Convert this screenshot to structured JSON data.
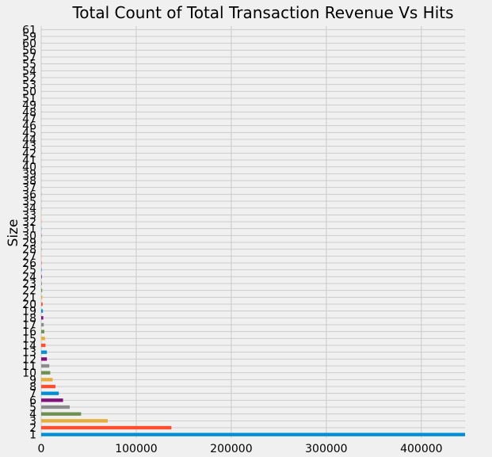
{
  "chart_data": {
    "type": "bar",
    "orientation": "horizontal",
    "title": "Total Count of Total Transaction Revenue Vs Hits",
    "xlabel": "",
    "ylabel": "Size",
    "xlim": [
      0,
      446000
    ],
    "xticks": [
      0,
      100000,
      200000,
      300000,
      400000
    ],
    "grid": true,
    "palette": [
      "#008fd5",
      "#fc4f30",
      "#e5ae38",
      "#6d904f",
      "#8b8b8b",
      "#810f7c"
    ],
    "categories": [
      "1",
      "2",
      "3",
      "4",
      "5",
      "6",
      "7",
      "8",
      "9",
      "10",
      "11",
      "12",
      "13",
      "14",
      "15",
      "16",
      "17",
      "18",
      "19",
      "20",
      "21",
      "22",
      "23",
      "24",
      "25",
      "26",
      "27",
      "28",
      "29",
      "30",
      "31",
      "32",
      "33",
      "34",
      "35",
      "36",
      "37",
      "38",
      "39",
      "40",
      "41",
      "42",
      "43",
      "44",
      "45",
      "46",
      "47",
      "48",
      "49",
      "51",
      "50",
      "53",
      "52",
      "54",
      "55",
      "57",
      "56",
      "60",
      "59",
      "61"
    ],
    "values": [
      446000,
      137000,
      70000,
      42000,
      30000,
      23000,
      18500,
      15000,
      12000,
      9500,
      8500,
      6000,
      6000,
      4500,
      4000,
      3300,
      2700,
      2200,
      1800,
      1500,
      1200,
      1000,
      700,
      600,
      500,
      450,
      400,
      350,
      300,
      260,
      230,
      200,
      180,
      160,
      140,
      120,
      110,
      100,
      90,
      80,
      70,
      60,
      55,
      50,
      45,
      40,
      35,
      30,
      28,
      25,
      22,
      20,
      18,
      16,
      14,
      12,
      10,
      8,
      6,
      5
    ]
  }
}
